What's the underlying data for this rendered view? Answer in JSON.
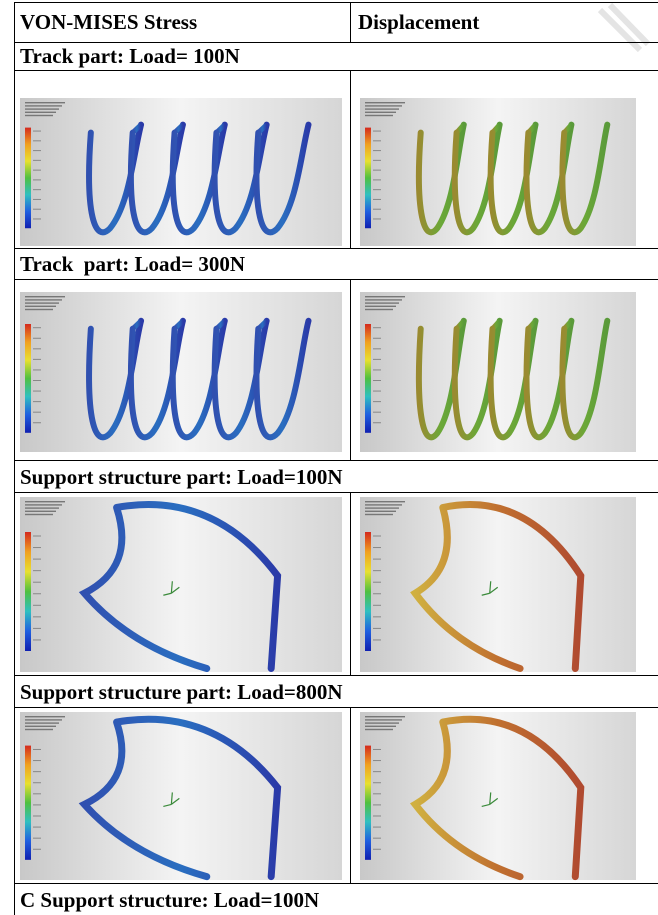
{
  "table": {
    "header": [
      "VON-MISES Stress",
      "Displacement"
    ],
    "sections": [
      {
        "title": "Track part: Load= 100N"
      },
      {
        "title": "Track  part: Load= 300N"
      },
      {
        "title": "Support structure part: Load=100N"
      },
      {
        "title": "Support structure part: Load=800N"
      },
      {
        "title": "C Support structure: Load=100N"
      }
    ]
  }
}
